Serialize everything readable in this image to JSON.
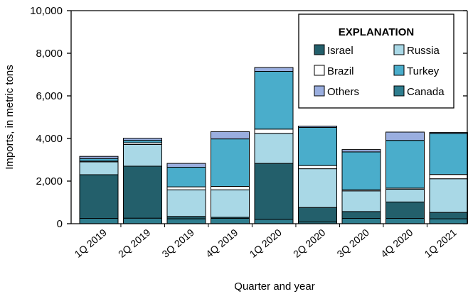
{
  "chart_data": {
    "type": "bar",
    "stacked": true,
    "categories": [
      "1Q 2019",
      "2Q 2019",
      "3Q 2019",
      "4Q 2019",
      "1Q 2020",
      "2Q 2020",
      "3Q 2020",
      "4Q 2020",
      "1Q 2021"
    ],
    "series": [
      {
        "name": "Canada",
        "key": "canada",
        "color": "#2e7d8e",
        "values": [
          250,
          260,
          230,
          250,
          200,
          80,
          250,
          250,
          230
        ]
      },
      {
        "name": "Israel",
        "key": "israel",
        "color": "#235f6b",
        "values": [
          2050,
          2440,
          110,
          50,
          2630,
          680,
          320,
          770,
          300
        ]
      },
      {
        "name": "Russia",
        "key": "russia",
        "color": "#a9d8e6",
        "values": [
          600,
          1020,
          1250,
          1290,
          1410,
          1820,
          970,
          600,
          1580
        ]
      },
      {
        "name": "Brazil",
        "key": "brazil",
        "color": "#ffffff",
        "values": [
          40,
          80,
          140,
          160,
          200,
          150,
          50,
          50,
          200
        ]
      },
      {
        "name": "Turkey",
        "key": "turkey",
        "color": "#4aadcb",
        "values": [
          120,
          110,
          920,
          2230,
          2710,
          1790,
          1780,
          2240,
          1930
        ]
      },
      {
        "name": "Others",
        "key": "others",
        "color": "#9aaedf",
        "values": [
          100,
          100,
          180,
          340,
          180,
          60,
          110,
          390,
          40
        ]
      }
    ],
    "legend": {
      "title": "EXPLANATION",
      "placement": "top-right",
      "order": [
        "israel",
        "russia",
        "brazil",
        "turkey",
        "others",
        "canada"
      ]
    },
    "xlabel": "Quarter and year",
    "ylabel": "Imports, in metric tons",
    "ylim": [
      0,
      10000
    ],
    "yticks": [
      0,
      2000,
      4000,
      6000,
      8000,
      10000
    ],
    "ytick_labels": [
      "0",
      "2,000",
      "4,000",
      "6,000",
      "8,000",
      "10,000"
    ],
    "grid": false
  }
}
